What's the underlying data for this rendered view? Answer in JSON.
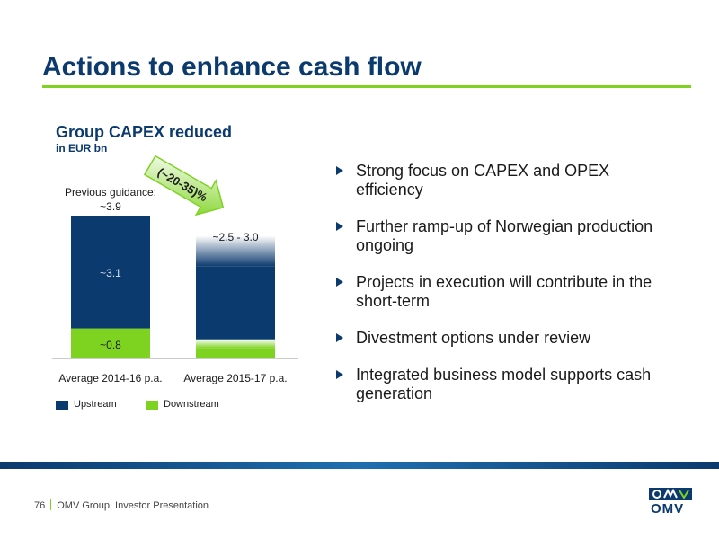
{
  "page": {
    "title": "Actions to enhance cash flow",
    "footer_page": "76",
    "footer_text": "OMV Group, Investor Presentation",
    "logo_text": "OMV"
  },
  "colors": {
    "navy": "#0b3a6e",
    "green": "#7ed321",
    "text": "#1a1a1a"
  },
  "chart_data": {
    "type": "bar",
    "stacked": true,
    "title": "Group CAPEX reduced",
    "subtitle": "in EUR bn",
    "categories": [
      "Average 2014-16 p.a.",
      "Average 2015-17 p.a."
    ],
    "series": [
      {
        "name": "Upstream",
        "color": "#0b3a6e",
        "values": [
          3.1,
          2.0
        ]
      },
      {
        "name": "Downstream",
        "color": "#7ed321",
        "values": [
          0.8,
          0.5
        ]
      }
    ],
    "totals": [
      3.9,
      3.0
    ],
    "range_low": 2.5,
    "ylim": [
      0,
      3.9
    ],
    "labels": {
      "bar1_total": "~3.9",
      "bar1_note": "Previous guidance:",
      "bar1_upstream": "~3.1",
      "bar1_downstream": "~0.8",
      "bar2_total": "~2.5 - 3.0"
    },
    "reduction_label": "(~20-35)%",
    "legend": [
      "Upstream",
      "Downstream"
    ],
    "legend_position": "bottom-left",
    "grid": false
  },
  "bullets": [
    "Strong focus on CAPEX and OPEX efficiency",
    "Further ramp-up of Norwegian production ongoing",
    "Projects in execution will contribute in the short-term",
    "Divestment options under review",
    "Integrated business model supports cash generation"
  ]
}
